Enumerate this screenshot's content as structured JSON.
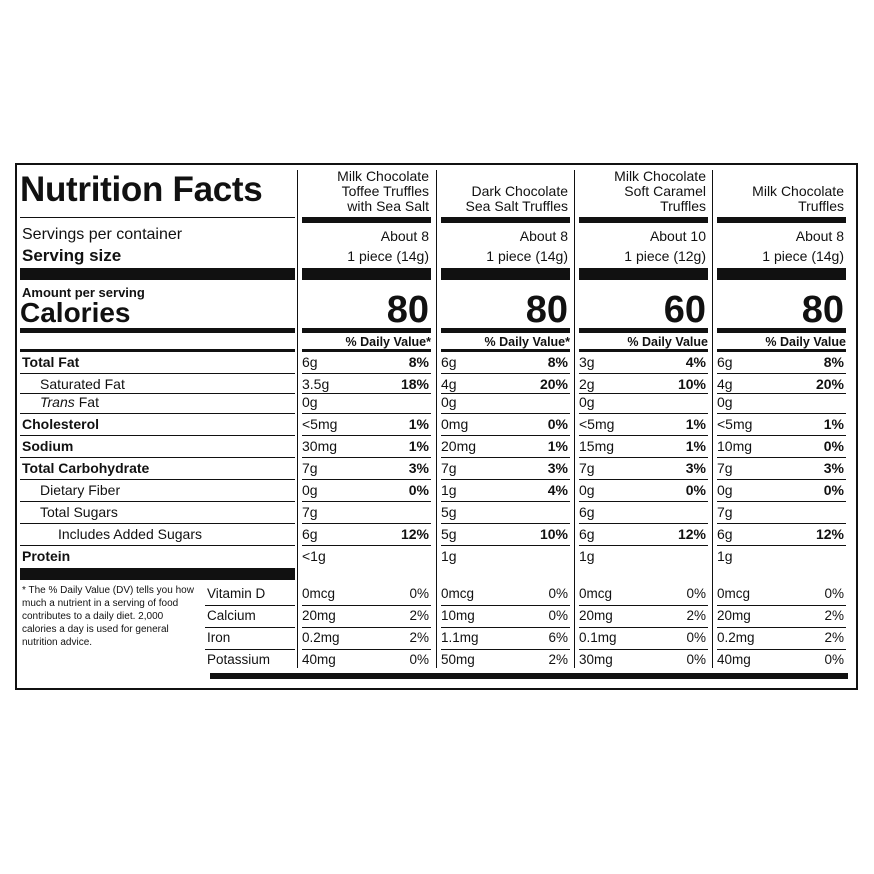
{
  "title": "Nutrition Facts",
  "servings_label": "Servings per container",
  "serving_size_label": "Serving size",
  "amount_label": "Amount per serving",
  "calories_label": "Calories",
  "footnote": "* The % Daily Value (DV) tells you how much a nutrient in a serving of food contributes to a daily diet. 2,000 calories a day is used for general nutrition advice.",
  "nutrients": [
    {
      "label": "Total Fat",
      "bold": true,
      "indent": 0
    },
    {
      "label": "Saturated Fat",
      "bold": false,
      "indent": 1
    },
    {
      "label_italic": "Trans",
      "label": "Fat",
      "bold": false,
      "indent": 1
    },
    {
      "label": "Cholesterol",
      "bold": true,
      "indent": 0
    },
    {
      "label": "Sodium",
      "bold": true,
      "indent": 0
    },
    {
      "label": "Total Carbohydrate",
      "bold": true,
      "indent": 0
    },
    {
      "label": "Dietary Fiber",
      "bold": false,
      "indent": 1
    },
    {
      "label": "Total Sugars",
      "bold": false,
      "indent": 1
    },
    {
      "label": "Includes Added Sugars",
      "bold": false,
      "indent": 2
    },
    {
      "label": "Protein",
      "bold": true,
      "indent": 0
    }
  ],
  "vitamins": [
    "Vitamin D",
    "Calcium",
    "Iron",
    "Potassium"
  ],
  "products": [
    {
      "name": [
        "Milk Chocolate",
        "Toffee Truffles",
        "with Sea Salt"
      ],
      "servings": "About 8",
      "serving_size": "1 piece (14g)",
      "calories": 80,
      "dv_header": "% Daily Value*",
      "nutrients": [
        [
          "6g",
          "8%"
        ],
        [
          "3.5g",
          "18%"
        ],
        [
          "0g",
          null
        ],
        [
          "<5mg",
          "1%"
        ],
        [
          "30mg",
          "1%"
        ],
        [
          "7g",
          "3%"
        ],
        [
          "0g",
          "0%"
        ],
        [
          "7g",
          null
        ],
        [
          "6g",
          "12%"
        ],
        [
          "<1g",
          null
        ]
      ],
      "vitamins": [
        [
          "0mcg",
          "0%"
        ],
        [
          "20mg",
          "2%"
        ],
        [
          "0.2mg",
          "2%"
        ],
        [
          "40mg",
          "0%"
        ]
      ]
    },
    {
      "name": [
        "Dark Chocolate",
        "Sea Salt Truffles"
      ],
      "servings": "About 8",
      "serving_size": "1 piece (14g)",
      "calories": 80,
      "dv_header": "% Daily Value*",
      "nutrients": [
        [
          "6g",
          "8%"
        ],
        [
          "4g",
          "20%"
        ],
        [
          "0g",
          null
        ],
        [
          "0mg",
          "0%"
        ],
        [
          "20mg",
          "1%"
        ],
        [
          "7g",
          "3%"
        ],
        [
          "1g",
          "4%"
        ],
        [
          "5g",
          null
        ],
        [
          "5g",
          "10%"
        ],
        [
          "1g",
          null
        ]
      ],
      "vitamins": [
        [
          "0mcg",
          "0%"
        ],
        [
          "10mg",
          "0%"
        ],
        [
          "1.1mg",
          "6%"
        ],
        [
          "50mg",
          "2%"
        ]
      ]
    },
    {
      "name": [
        "Milk Chocolate",
        "Soft Caramel",
        "Truffles"
      ],
      "servings": "About 10",
      "serving_size": "1 piece (12g)",
      "calories": 60,
      "dv_header": "% Daily Value",
      "nutrients": [
        [
          "3g",
          "4%"
        ],
        [
          "2g",
          "10%"
        ],
        [
          "0g",
          null
        ],
        [
          "<5mg",
          "1%"
        ],
        [
          "15mg",
          "1%"
        ],
        [
          "7g",
          "3%"
        ],
        [
          "0g",
          "0%"
        ],
        [
          "6g",
          null
        ],
        [
          "6g",
          "12%"
        ],
        [
          "1g",
          null
        ]
      ],
      "vitamins": [
        [
          "0mcg",
          "0%"
        ],
        [
          "20mg",
          "2%"
        ],
        [
          "0.1mg",
          "0%"
        ],
        [
          "30mg",
          "0%"
        ]
      ]
    },
    {
      "name": [
        "Milk Chocolate",
        "Truffles"
      ],
      "servings": "About 8",
      "serving_size": "1 piece (14g)",
      "calories": 80,
      "dv_header": "% Daily Value",
      "nutrients": [
        [
          "6g",
          "8%"
        ],
        [
          "4g",
          "20%"
        ],
        [
          "0g",
          null
        ],
        [
          "<5mg",
          "1%"
        ],
        [
          "10mg",
          "0%"
        ],
        [
          "7g",
          "3%"
        ],
        [
          "0g",
          "0%"
        ],
        [
          "7g",
          null
        ],
        [
          "6g",
          "12%"
        ],
        [
          "1g",
          null
        ]
      ],
      "vitamins": [
        [
          "0mcg",
          "0%"
        ],
        [
          "20mg",
          "2%"
        ],
        [
          "0.2mg",
          "2%"
        ],
        [
          "40mg",
          "0%"
        ]
      ]
    }
  ]
}
